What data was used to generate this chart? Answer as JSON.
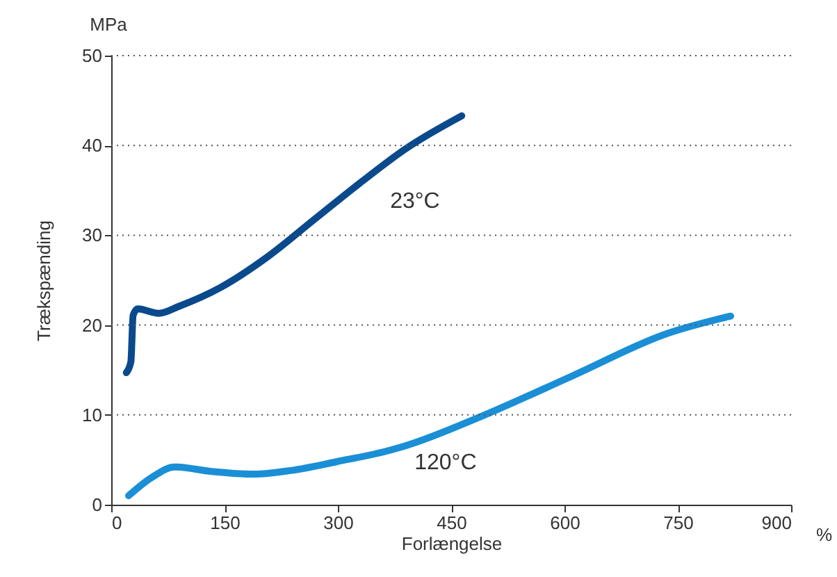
{
  "chart_data": {
    "type": "line",
    "xlabel": "Forlængelse",
    "ylabel": "Trækspænding",
    "xlim": [
      0,
      900
    ],
    "xticks": [
      0,
      150,
      300,
      450,
      600,
      750,
      900
    ],
    "ylim": [
      0,
      50
    ],
    "yticks": [
      0,
      10,
      20,
      30,
      40,
      50
    ],
    "grid": "y",
    "legend": false,
    "marker": "none",
    "line_style": "solid",
    "series": [
      {
        "name": "23°C",
        "color": "#0a4a8c",
        "x": [
          20,
          26,
          29,
          35,
          63,
          90,
          145,
          207,
          268,
          329,
          391,
          464
        ],
        "values": [
          14.7,
          15.9,
          21.1,
          21.8,
          21.3,
          22.1,
          24.2,
          27.6,
          31.7,
          35.8,
          39.7,
          43.3
        ]
      },
      {
        "name": "120°C",
        "color": "#1a8fd6",
        "x": [
          23,
          53,
          84,
          133,
          188,
          237,
          299,
          366,
          391,
          489,
          612,
          734,
          820
        ],
        "values": [
          1.0,
          3.0,
          4.2,
          3.7,
          3.4,
          3.8,
          4.8,
          6.0,
          6.6,
          9.8,
          14.4,
          19.0,
          21.0
        ]
      }
    ],
    "annotations": [
      "MPa",
      "%"
    ]
  }
}
